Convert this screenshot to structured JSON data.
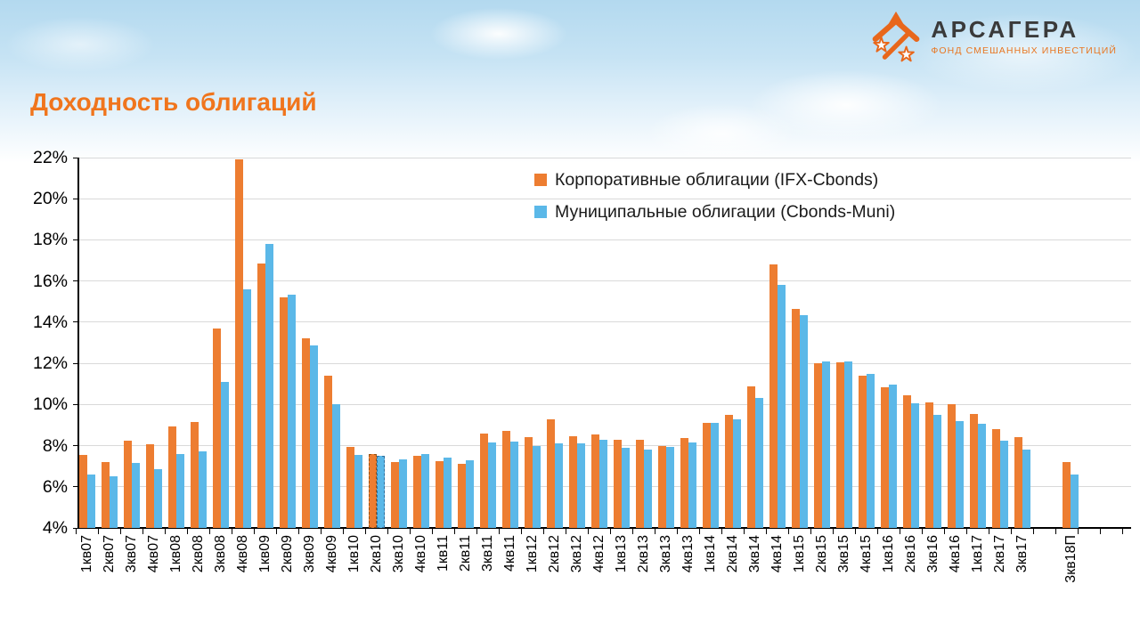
{
  "logo": {
    "name": "АРСАГЕРА",
    "subtitle": "ФОНД СМЕШАННЫХ ИНВЕСТИЦИЙ"
  },
  "page_title": "Доходность облигаций",
  "chart_data": {
    "type": "bar",
    "title": "Доходность облигаций",
    "ylim": [
      4,
      22
    ],
    "ytick_labels": [
      "4%",
      "6%",
      "8%",
      "10%",
      "12%",
      "14%",
      "16%",
      "18%",
      "20%",
      "22%"
    ],
    "grid": true,
    "legend_position": "inside-top",
    "categories": [
      "1кв07",
      "2кв07",
      "3кв07",
      "4кв07",
      "1кв08",
      "2кв08",
      "3кв08",
      "4кв08",
      "1кв09",
      "2кв09",
      "3кв09",
      "4кв09",
      "1кв10",
      "2кв10",
      "3кв10",
      "4кв10",
      "1кв11",
      "2кв11",
      "3кв11",
      "4кв11",
      "1кв12",
      "2кв12",
      "3кв12",
      "4кв12",
      "1кв13",
      "2кв13",
      "3кв13",
      "4кв13",
      "1кв14",
      "2кв14",
      "3кв14",
      "4кв14",
      "1кв15",
      "2кв15",
      "3кв15",
      "4кв15",
      "1кв16",
      "2кв16",
      "3кв16",
      "4кв16",
      "1кв17",
      "2кв17",
      "3кв17",
      "3кв18П"
    ],
    "series": [
      {
        "name": "Корпоративные облигации (IFX-Cbonds)",
        "color": "#ED7D31",
        "values": [
          7.55,
          7.2,
          8.25,
          8.05,
          8.95,
          9.15,
          13.7,
          21.9,
          16.85,
          15.2,
          13.2,
          11.4,
          7.95,
          7.6,
          7.2,
          7.5,
          7.25,
          7.1,
          8.6,
          8.7,
          8.4,
          9.3,
          8.45,
          8.55,
          8.3,
          8.3,
          8.0,
          8.35,
          9.1,
          9.5,
          10.9,
          16.8,
          14.65,
          12.0,
          12.05,
          11.4,
          10.85,
          10.45,
          10.1,
          10.0,
          9.55,
          8.8,
          8.4,
          7.2
        ]
      },
      {
        "name": "Муниципальные облигации (Cbonds-Muni)",
        "color": "#5BB8E8",
        "values": [
          6.6,
          6.5,
          7.15,
          6.85,
          7.6,
          7.7,
          11.1,
          15.6,
          17.8,
          15.35,
          12.85,
          10.0,
          7.55,
          7.5,
          7.35,
          7.6,
          7.4,
          7.3,
          8.15,
          8.2,
          8.0,
          8.1,
          8.1,
          8.3,
          7.9,
          7.8,
          7.95,
          8.15,
          9.1,
          9.3,
          10.3,
          15.8,
          14.35,
          12.1,
          12.1,
          11.5,
          10.95,
          10.05,
          9.5,
          9.2,
          9.05,
          8.25,
          7.8,
          6.6
        ]
      }
    ],
    "dashed_outline_category": "2кв10",
    "forecast_category": "3кв18П",
    "gap_before_forecast": true
  }
}
